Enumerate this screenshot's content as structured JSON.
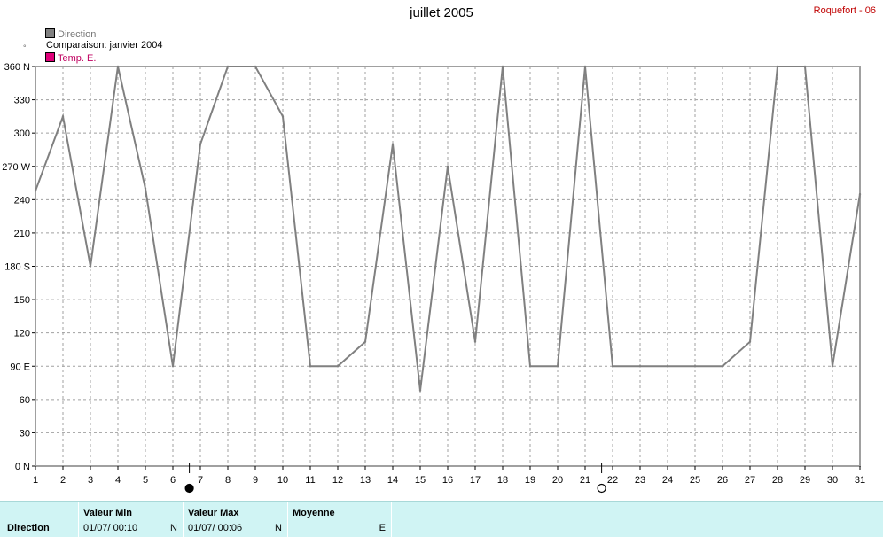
{
  "header": {
    "title": "juillet 2005",
    "station": "Roquefort - 06"
  },
  "legend": {
    "direction_label": "Direction",
    "comparison_label": "Comparaison: janvier 2004",
    "temp_label": "Temp. E.",
    "mark": "°"
  },
  "colors": {
    "line": "#808080",
    "grid": "#a0a0a0",
    "temp": "#c00060",
    "station": "#c00000",
    "footer_bg": "#d0f4f4"
  },
  "chart_data": {
    "type": "line",
    "title": "juillet 2005",
    "xlabel": "",
    "ylabel": "",
    "ylim": [
      0,
      360
    ],
    "xlim": [
      1,
      31
    ],
    "grid": true,
    "y_ticks": [
      "0 N",
      "30",
      "60",
      "90 E",
      "120",
      "150",
      "180 S",
      "210",
      "240",
      "270 W",
      "300",
      "330",
      "360 N"
    ],
    "x_ticks": [
      "1",
      "2",
      "3",
      "4",
      "5",
      "6",
      "7",
      "8",
      "9",
      "10",
      "11",
      "12",
      "13",
      "14",
      "15",
      "16",
      "17",
      "18",
      "19",
      "20",
      "21",
      "22",
      "23",
      "24",
      "25",
      "26",
      "27",
      "28",
      "29",
      "30",
      "31"
    ],
    "series": [
      {
        "x": [
          1,
          2,
          3,
          4,
          5,
          6,
          7,
          8,
          9,
          10,
          11,
          12,
          13,
          14,
          15,
          16,
          17,
          18,
          19,
          20,
          21,
          22,
          23,
          24,
          25,
          26,
          27,
          28,
          29,
          30,
          31
        ],
        "values": [
          248,
          315,
          180,
          360,
          250,
          90,
          290,
          360,
          360,
          315,
          90,
          90,
          112,
          290,
          68,
          270,
          112,
          360,
          90,
          90,
          360,
          90,
          90,
          90,
          90,
          90,
          112,
          360,
          360,
          90,
          245
        ]
      }
    ],
    "moon_phases": [
      {
        "day": 6.6,
        "phase": "new"
      },
      {
        "day": 21.6,
        "phase": "full"
      }
    ]
  },
  "footer": {
    "row_label": "Direction",
    "min": {
      "header": "Valeur Min",
      "date": "01/07/  00:10",
      "unit": "N"
    },
    "max": {
      "header": "Valeur Max",
      "date": "01/07/  00:06",
      "unit": "N"
    },
    "avg": {
      "header": "Moyenne",
      "unit": "E"
    }
  }
}
